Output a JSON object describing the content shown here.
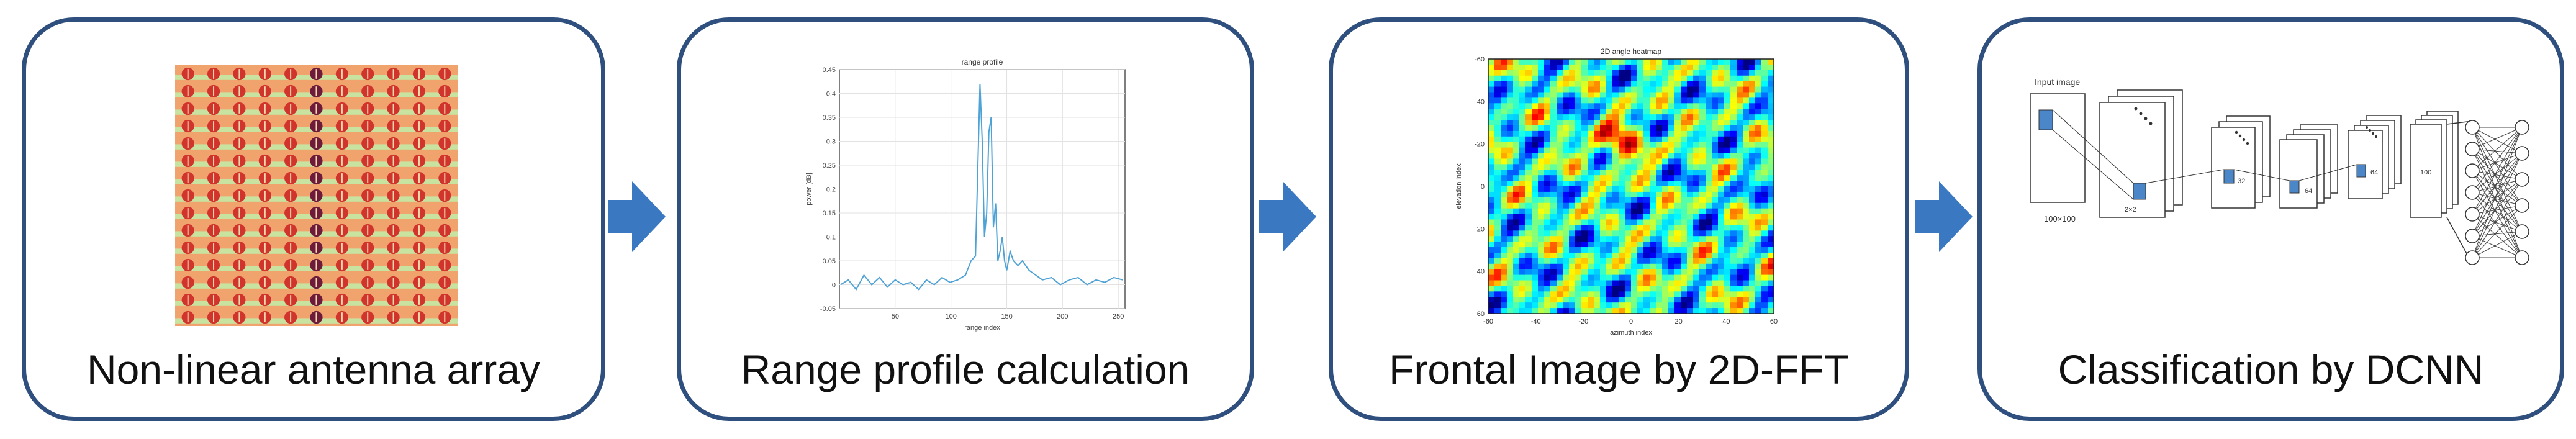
{
  "stages": [
    {
      "caption": "Non-linear antenna array"
    },
    {
      "caption": "Range profile calculation"
    },
    {
      "caption": "Frontal Image by 2D-FFT"
    },
    {
      "caption": "Classification by DCNN"
    }
  ],
  "antenna_array": {
    "rows": 15,
    "cols": 11,
    "highlight_col": 5,
    "colors": {
      "background": "#f0a36d",
      "stripe": "#c8e3a0",
      "element": "#d1342c",
      "highlight": "#6e1a3b"
    }
  },
  "range_profile": {
    "chart_data": {
      "type": "line",
      "title": "range profile",
      "xlabel": "range index",
      "ylabel": "power [dB]",
      "xlim": [
        0,
        256
      ],
      "ylim": [
        -0.05,
        0.45
      ],
      "x_ticks": [
        "50",
        "100",
        "150",
        "200",
        "250"
      ],
      "y_ticks": [
        "-0.05",
        "0",
        "0.05",
        "0.1",
        "0.15",
        "0.2",
        "0.25",
        "0.3",
        "0.35",
        "0.4",
        "0.45"
      ],
      "series": [
        {
          "x": [
            1,
            8,
            15,
            22,
            29,
            36,
            43,
            50,
            57,
            64,
            71,
            78,
            85,
            92,
            99,
            106,
            113,
            118,
            122,
            126,
            128,
            130,
            132,
            134,
            136,
            138,
            140,
            142,
            144,
            146,
            148,
            150,
            153,
            156,
            160,
            164,
            170,
            176,
            182,
            190,
            198,
            206,
            214,
            222,
            230,
            238,
            246,
            254
          ],
          "y": [
            0.0,
            0.01,
            -0.01,
            0.02,
            0.0,
            0.015,
            -0.005,
            0.01,
            0.0,
            0.005,
            -0.01,
            0.01,
            0.0,
            0.015,
            0.005,
            0.01,
            0.02,
            0.05,
            0.06,
            0.42,
            0.3,
            0.1,
            0.15,
            0.32,
            0.35,
            0.12,
            0.17,
            0.05,
            0.07,
            0.1,
            0.05,
            0.03,
            0.07,
            0.05,
            0.04,
            0.05,
            0.03,
            0.02,
            0.01,
            0.015,
            0.0,
            0.01,
            0.015,
            0.0,
            0.01,
            0.005,
            0.015,
            0.01
          ],
          "color": "#4fa2d6"
        }
      ]
    }
  },
  "heatmap": {
    "chart_data": {
      "type": "heatmap",
      "title": "2D angle heatmap",
      "xlabel": "azimuth index",
      "ylabel": "elevation index",
      "xlim": [
        -60,
        60
      ],
      "ylim": [
        -60,
        60
      ],
      "x_ticks": [
        "-60",
        "-40",
        "-20",
        "0",
        "20",
        "40",
        "60"
      ],
      "y_ticks": [
        "-60",
        "-40",
        "-20",
        "0",
        "20",
        "40",
        "60"
      ],
      "colormap": "jet"
    }
  },
  "dcnn": {
    "input_label": "Input image",
    "input_size": "100×100",
    "feature_labels": [
      "32",
      "2×2",
      "64",
      "64",
      "100"
    ],
    "colors": {
      "kernel": "#4a86c8",
      "line": "#333333"
    }
  },
  "arrow_color": "#3a78c2",
  "border_color": "#2f4f7f"
}
